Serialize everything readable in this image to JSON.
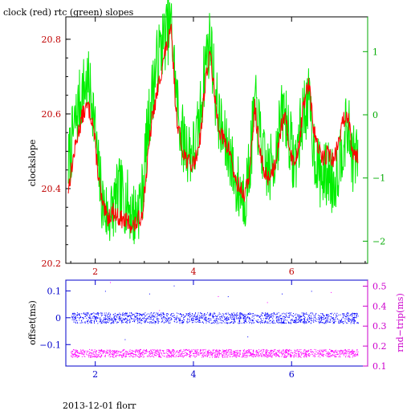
{
  "title": "clock (red) rtc (green) slopes",
  "footer": "2013-12-01 florr",
  "colors": {
    "clock": "#ff0000",
    "rtc": "#00ee00",
    "offset": "#0000ff",
    "rndtrip": "#ff00ff",
    "top_left_axis": "#c00000",
    "top_right_axis": "#00aa00",
    "bottom_left_axis": "#0000cc",
    "bottom_right_axis": "#cc00cc",
    "frame": "#000000"
  },
  "chart_data": [
    {
      "type": "line",
      "title": "clock (red) rtc (green) slopes",
      "xlabel": "",
      "ylabel": "clockslope",
      "xlim": [
        1.4,
        7.55
      ],
      "ylim": [
        20.2,
        20.86
      ],
      "xticks": [
        2,
        4,
        6
      ],
      "yticks": [
        20.2,
        20.4,
        20.6,
        20.8
      ],
      "ytick_labels": [
        "20.2",
        "20.4",
        "20.6",
        "20.8"
      ],
      "y2label": "",
      "y2lim": [
        -2.35,
        1.55
      ],
      "y2ticks": [
        -2,
        -1,
        0,
        1
      ],
      "y2tick_labels": [
        "−2",
        "−1",
        "0",
        "1"
      ],
      "series": [
        {
          "name": "clock",
          "axis": "left",
          "x": [
            1.45,
            1.55,
            1.65,
            1.75,
            1.85,
            1.95,
            2.05,
            2.15,
            2.25,
            2.35,
            2.5,
            2.65,
            2.8,
            2.95,
            3.05,
            3.15,
            3.25,
            3.35,
            3.45,
            3.55,
            3.65,
            3.75,
            3.85,
            3.95,
            4.05,
            4.15,
            4.25,
            4.35,
            4.45,
            4.55,
            4.65,
            4.75,
            4.85,
            4.95,
            5.05,
            5.15,
            5.25,
            5.35,
            5.45,
            5.55,
            5.65,
            5.75,
            5.85,
            5.95,
            6.05,
            6.15,
            6.25,
            6.35,
            6.45,
            6.55,
            6.65,
            6.75,
            6.85,
            6.95,
            7.05,
            7.15,
            7.25,
            7.35
          ],
          "y": [
            20.4,
            20.48,
            20.55,
            20.6,
            20.62,
            20.58,
            20.45,
            20.35,
            20.32,
            20.34,
            20.32,
            20.31,
            20.3,
            20.33,
            20.45,
            20.58,
            20.65,
            20.72,
            20.78,
            20.82,
            20.6,
            20.52,
            20.48,
            20.46,
            20.48,
            20.55,
            20.7,
            20.76,
            20.62,
            20.55,
            20.52,
            20.5,
            20.42,
            20.4,
            20.38,
            20.45,
            20.62,
            20.5,
            20.44,
            20.43,
            20.46,
            20.54,
            20.6,
            20.52,
            20.46,
            20.52,
            20.63,
            20.68,
            20.56,
            20.5,
            20.48,
            20.5,
            20.47,
            20.52,
            20.58,
            20.6,
            20.5,
            20.49
          ]
        },
        {
          "name": "rtc",
          "axis": "right",
          "x": [
            1.45,
            1.55,
            1.65,
            1.75,
            1.85,
            1.95,
            2.05,
            2.15,
            2.25,
            2.35,
            2.5,
            2.65,
            2.8,
            2.95,
            3.05,
            3.15,
            3.25,
            3.35,
            3.45,
            3.55,
            3.65,
            3.75,
            3.85,
            3.95,
            4.05,
            4.15,
            4.25,
            4.35,
            4.45,
            4.55,
            4.65,
            4.75,
            4.85,
            4.95,
            5.05,
            5.15,
            5.25,
            5.35,
            5.45,
            5.55,
            5.65,
            5.75,
            5.85,
            5.95,
            6.05,
            6.15,
            6.25,
            6.35,
            6.45,
            6.55,
            6.65,
            6.75,
            6.85,
            6.95,
            7.05,
            7.15,
            7.25,
            7.35
          ],
          "y": [
            -0.8,
            -0.3,
            0.1,
            0.4,
            0.5,
            0.2,
            -0.8,
            -1.4,
            -1.6,
            -1.5,
            -1.2,
            -1.4,
            -1.6,
            -1.3,
            -0.4,
            0.3,
            0.8,
            1.1,
            1.3,
            1.4,
            0.3,
            -0.3,
            -0.5,
            -0.6,
            -0.5,
            0.1,
            0.9,
            1.2,
            0.3,
            -0.2,
            -0.5,
            -0.6,
            -1.1,
            -1.2,
            -1.3,
            -0.8,
            0.2,
            -0.3,
            -0.8,
            -0.9,
            -0.7,
            -0.2,
            0.1,
            -0.3,
            -0.8,
            -0.4,
            0.1,
            0.2,
            -0.5,
            -0.9,
            -1.0,
            -0.9,
            -1.1,
            -0.8,
            -0.4,
            -0.2,
            -0.7,
            -0.6
          ]
        }
      ]
    },
    {
      "type": "scatter",
      "xlabel": "",
      "ylabel": "offset(ms)",
      "xlim": [
        1.4,
        7.55
      ],
      "ylim": [
        -0.18,
        0.14
      ],
      "xticks": [
        2,
        4,
        6
      ],
      "yticks": [
        -0.1,
        0,
        0.1
      ],
      "ytick_labels": [
        "−0.1",
        "0",
        "0.1"
      ],
      "y2label": "rnd−trip(ms)",
      "y2lim": [
        0.1,
        0.53
      ],
      "y2ticks": [
        0.1,
        0.2,
        0.3,
        0.4,
        0.5
      ],
      "y2tick_labels": [
        "0.1",
        "0.2",
        "0.3",
        "0.4",
        "0.5"
      ],
      "series": [
        {
          "name": "offset",
          "axis": "left",
          "x_range": [
            1.5,
            7.35
          ],
          "center": 0.0,
          "spread": 0.02,
          "outliers": [
            [
              2.2,
              0.1
            ],
            [
              3.1,
              0.09
            ],
            [
              3.6,
              0.12
            ],
            [
              4.7,
              0.08
            ],
            [
              5.8,
              0.09
            ],
            [
              6.4,
              0.1
            ],
            [
              2.6,
              -0.08
            ],
            [
              5.1,
              -0.07
            ]
          ]
        },
        {
          "name": "rnd-trip",
          "axis": "right",
          "x_range": [
            1.5,
            7.35
          ],
          "center": 0.165,
          "spread": 0.02,
          "outliers": [
            [
              2.3,
              0.52
            ],
            [
              4.5,
              0.45
            ],
            [
              5.5,
              0.42
            ],
            [
              6.8,
              0.47
            ],
            [
              3.3,
              0.38
            ]
          ]
        }
      ]
    }
  ]
}
